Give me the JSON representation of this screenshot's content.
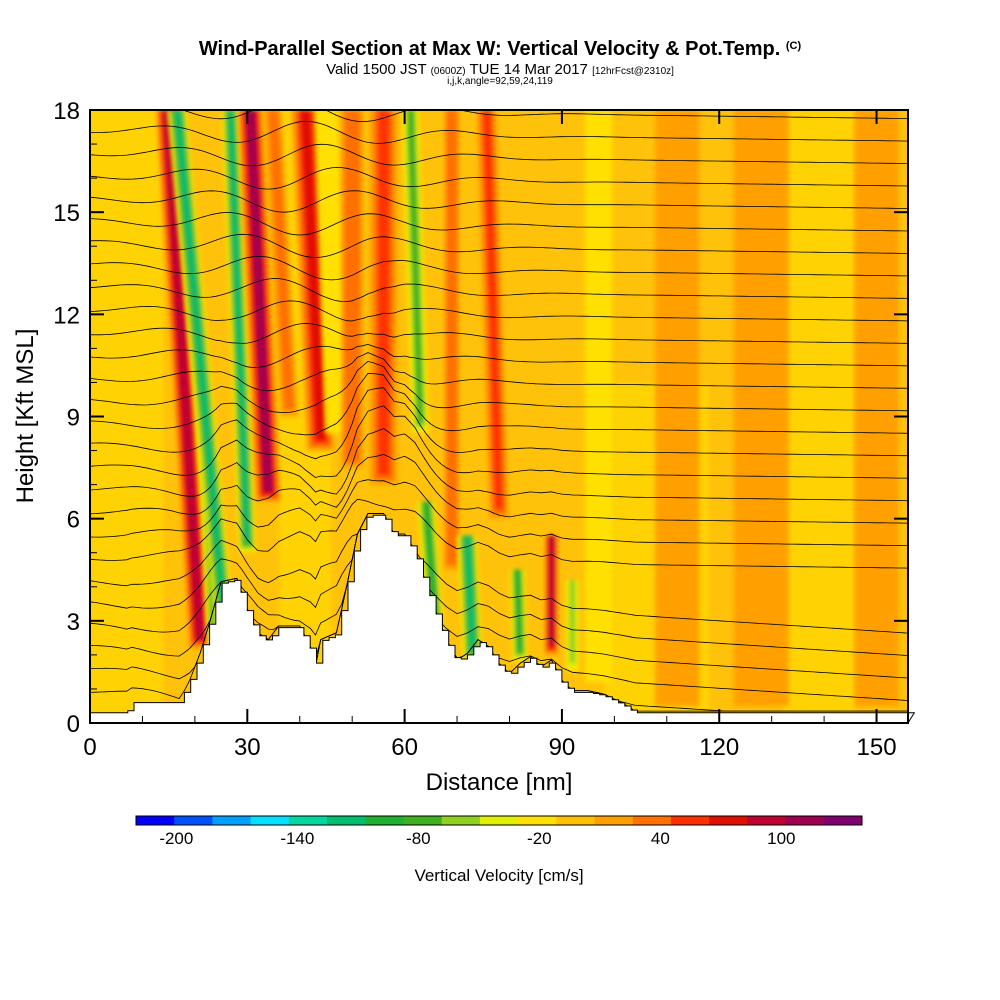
{
  "header": {
    "title": "Wind-Parallel Section at Max W: Vertical Velocity & Pot.Temp.",
    "copyright": "(C)",
    "valid_prefix": "Valid 1500 JST",
    "valid_utc": "(0600Z)",
    "valid_date": "TUE 14 Mar 2017",
    "forecast": "[12hrFcst@2310z]",
    "indices": "i,j,k,angle=92,59,24,119"
  },
  "chart_data": {
    "type": "heatmap",
    "xlabel": "Distance [nm]",
    "ylabel": "Height [Kft MSL]",
    "xlim": [
      0,
      156
    ],
    "ylim": [
      0,
      18
    ],
    "x_ticks": [
      0,
      30,
      60,
      90,
      120,
      150
    ],
    "y_ticks": [
      0,
      3,
      6,
      9,
      12,
      15,
      18
    ],
    "colorbar": {
      "label": "Vertical Velocity [cm/s]",
      "min": -220,
      "max": 140,
      "step": 20,
      "tick_labels": [
        -200,
        -140,
        -80,
        -20,
        40,
        100
      ],
      "colors": [
        "#0000ff",
        "#0050ff",
        "#00a0ff",
        "#00e0ff",
        "#00d8a0",
        "#00c070",
        "#20b030",
        "#40b020",
        "#90d020",
        "#e0f000",
        "#ffe000",
        "#ffc000",
        "#ffa000",
        "#ff7000",
        "#ff3000",
        "#e01000",
        "#c00030",
        "#a00050",
        "#800070"
      ]
    },
    "background_colors": {
      "weak_positive": "#ffc20a",
      "zero": "#ffe000",
      "weak_negative": "#f0f000"
    },
    "terrain_profile": [
      [
        0,
        0.3
      ],
      [
        7,
        0.3
      ],
      [
        8,
        0.6
      ],
      [
        17,
        0.6
      ],
      [
        19,
        1.2
      ],
      [
        21,
        2.0
      ],
      [
        23,
        3.0
      ],
      [
        25,
        4.1
      ],
      [
        28,
        4.2
      ],
      [
        30,
        3.3
      ],
      [
        32,
        2.6
      ],
      [
        34,
        2.4
      ],
      [
        36,
        2.8
      ],
      [
        40,
        2.8
      ],
      [
        42,
        2.2
      ],
      [
        43,
        1.6
      ],
      [
        44,
        2.4
      ],
      [
        47,
        2.6
      ],
      [
        49,
        4.0
      ],
      [
        51,
        5.5
      ],
      [
        53,
        6.1
      ],
      [
        56,
        6.1
      ],
      [
        58,
        5.5
      ],
      [
        60,
        5.5
      ],
      [
        62,
        5.0
      ],
      [
        64,
        4.1
      ],
      [
        66,
        3.2
      ],
      [
        68,
        2.4
      ],
      [
        70,
        1.8
      ],
      [
        72,
        2.0
      ],
      [
        74,
        2.4
      ],
      [
        76,
        2.2
      ],
      [
        78,
        1.7
      ],
      [
        80,
        1.4
      ],
      [
        82,
        1.7
      ],
      [
        84,
        1.9
      ],
      [
        86,
        1.6
      ],
      [
        88,
        1.8
      ],
      [
        90,
        1.2
      ],
      [
        92,
        0.9
      ],
      [
        95,
        0.9
      ],
      [
        98,
        0.8
      ],
      [
        102,
        0.5
      ],
      [
        104,
        0.3
      ],
      [
        156,
        0.3
      ]
    ],
    "vertical_velocity_bands": [
      {
        "x": 21,
        "base": 2.2,
        "top": 18,
        "tilt": -4.0,
        "half_width": 2.0,
        "value": 110
      },
      {
        "x": 24,
        "base": 2.0,
        "top": 9,
        "tilt": -3.0,
        "half_width": 1.5,
        "value": -90
      },
      {
        "x": 26,
        "base": 2.2,
        "top": 18,
        "tilt": -6.0,
        "half_width": 1.8,
        "value": -110
      },
      {
        "x": 30,
        "base": 5.0,
        "top": 18,
        "tilt": -2.5,
        "half_width": 1.6,
        "value": -120
      },
      {
        "x": 34,
        "base": 6.5,
        "top": 18,
        "tilt": -3.0,
        "half_width": 2.2,
        "value": 120
      },
      {
        "x": 38,
        "base": 9.0,
        "top": 18,
        "tilt": -3.5,
        "half_width": 1.6,
        "value": 40
      },
      {
        "x": 44,
        "base": 8.0,
        "top": 18,
        "tilt": -3.0,
        "half_width": 2.5,
        "value": 80
      },
      {
        "x": 47,
        "base": 8.5,
        "top": 18,
        "tilt": -2.0,
        "half_width": 2.0,
        "value": -20
      },
      {
        "x": 50,
        "base": 7.5,
        "top": 18,
        "tilt": 0,
        "half_width": 2.0,
        "value": 50
      },
      {
        "x": 56,
        "base": 7.0,
        "top": 18,
        "tilt": 0,
        "half_width": 2.5,
        "value": 60
      },
      {
        "x": 66,
        "base": 2.5,
        "top": 6.5,
        "tilt": -5.0,
        "half_width": 1.6,
        "value": -100
      },
      {
        "x": 63,
        "base": 8.5,
        "top": 18,
        "tilt": -2.0,
        "half_width": 1.6,
        "value": -80
      },
      {
        "x": 69,
        "base": 4.5,
        "top": 18,
        "tilt": 0,
        "half_width": 1.4,
        "value": 50
      },
      {
        "x": 73,
        "base": 1.8,
        "top": 5.5,
        "tilt": -3.0,
        "half_width": 1.8,
        "value": -110
      },
      {
        "x": 78,
        "base": 6.0,
        "top": 18,
        "tilt": -2.0,
        "half_width": 1.8,
        "value": 60
      },
      {
        "x": 82,
        "base": 1.8,
        "top": 4.5,
        "tilt": -2.0,
        "half_width": 1.4,
        "value": -90
      },
      {
        "x": 88,
        "base": 2.0,
        "top": 5.5,
        "tilt": 0,
        "half_width": 1.2,
        "value": 110
      },
      {
        "x": 92,
        "base": 1.5,
        "top": 4.2,
        "tilt": 0,
        "half_width": 1.2,
        "value": -50
      },
      {
        "x": 97,
        "base": 1.2,
        "top": 18,
        "tilt": 0,
        "half_width": 2.5,
        "value": -15
      },
      {
        "x": 112,
        "base": 0.5,
        "top": 18,
        "tilt": 0,
        "half_width": 4.0,
        "value": 30
      },
      {
        "x": 128,
        "base": 0.5,
        "top": 18,
        "tilt": 0,
        "half_width": 5.0,
        "value": 30
      },
      {
        "x": 150,
        "base": 0.5,
        "top": 18,
        "tilt": 0,
        "half_width": 4.0,
        "value": 25
      }
    ],
    "isentrope_count": 27
  }
}
